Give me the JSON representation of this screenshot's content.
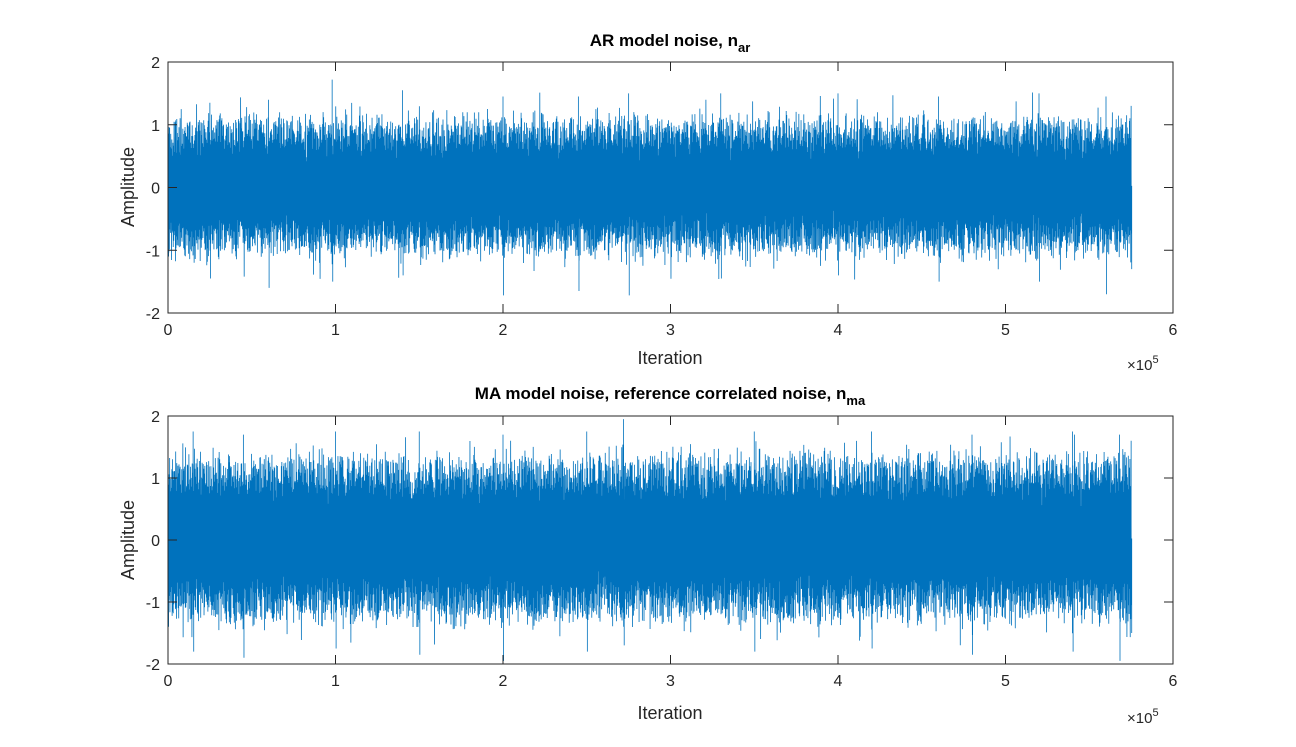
{
  "figure": {
    "background": "#ffffff",
    "line_color": "#0072bd",
    "axis_color": "#262626"
  },
  "chart_data": [
    {
      "type": "line",
      "title_main": "AR model noise, n",
      "title_sub": "ar",
      "xlabel": "Iteration",
      "ylabel": "Amplitude",
      "xlim": [
        0,
        600000
      ],
      "ylim": [
        -2,
        2
      ],
      "x_ticks": [
        0,
        100000,
        200000,
        300000,
        400000,
        500000,
        600000
      ],
      "x_tick_labels": [
        "0",
        "1",
        "2",
        "3",
        "4",
        "5",
        "6"
      ],
      "y_ticks": [
        -2,
        -1,
        0,
        1,
        2
      ],
      "y_tick_labels": [
        "-2",
        "-1",
        "0",
        "1",
        "2"
      ],
      "x_exponent_base": "×10",
      "x_exponent_power": "5",
      "grid": false,
      "series": [
        {
          "color": "#0072bd",
          "x_range": [
            0,
            575000
          ],
          "noise_peaks": [
            {
              "x": 0,
              "max": 1.2,
              "min": -1.1
            },
            {
              "x": 25000,
              "max": 1.35,
              "min": -1.45
            },
            {
              "x": 60000,
              "max": 1.4,
              "min": -1.6
            },
            {
              "x": 98000,
              "max": 1.72,
              "min": -1.5
            },
            {
              "x": 140000,
              "max": 1.55,
              "min": -1.4
            },
            {
              "x": 200000,
              "max": 1.45,
              "min": -1.72
            },
            {
              "x": 245000,
              "max": 1.45,
              "min": -1.65
            },
            {
              "x": 275000,
              "max": 1.5,
              "min": -1.72
            },
            {
              "x": 330000,
              "max": 1.5,
              "min": -1.45
            },
            {
              "x": 400000,
              "max": 1.5,
              "min": -1.4
            },
            {
              "x": 460000,
              "max": 1.45,
              "min": -1.5
            },
            {
              "x": 520000,
              "max": 1.5,
              "min": -1.5
            },
            {
              "x": 560000,
              "max": 1.45,
              "min": -1.7
            },
            {
              "x": 575000,
              "max": 1.3,
              "min": -1.3
            }
          ],
          "typical_envelope": [
            -1.05,
            1.1
          ]
        }
      ]
    },
    {
      "type": "line",
      "title_main": "MA model noise, reference correlated noise, n",
      "title_sub": "ma",
      "xlabel": "Iteration",
      "ylabel": "Amplitude",
      "xlim": [
        0,
        600000
      ],
      "ylim": [
        -2,
        2
      ],
      "x_ticks": [
        0,
        100000,
        200000,
        300000,
        400000,
        500000,
        600000
      ],
      "x_tick_labels": [
        "0",
        "1",
        "2",
        "3",
        "4",
        "5",
        "6"
      ],
      "y_ticks": [
        -2,
        -1,
        0,
        1,
        2
      ],
      "y_tick_labels": [
        "-2",
        "-1",
        "0",
        "1",
        "2"
      ],
      "x_exponent_base": "×10",
      "x_exponent_power": "5",
      "grid": false,
      "series": [
        {
          "color": "#0072bd",
          "x_range": [
            0,
            575000
          ],
          "noise_peaks": [
            {
              "x": 0,
              "max": 1.55,
              "min": -1.4
            },
            {
              "x": 15000,
              "max": 1.75,
              "min": -1.8
            },
            {
              "x": 45000,
              "max": 1.7,
              "min": -1.9
            },
            {
              "x": 100000,
              "max": 1.75,
              "min": -1.75
            },
            {
              "x": 150000,
              "max": 1.75,
              "min": -1.85
            },
            {
              "x": 200000,
              "max": 1.7,
              "min": -1.95
            },
            {
              "x": 250000,
              "max": 1.75,
              "min": -1.8
            },
            {
              "x": 272000,
              "max": 1.95,
              "min": -1.7
            },
            {
              "x": 350000,
              "max": 1.75,
              "min": -1.8
            },
            {
              "x": 420000,
              "max": 1.75,
              "min": -1.75
            },
            {
              "x": 480000,
              "max": 1.7,
              "min": -1.85
            },
            {
              "x": 540000,
              "max": 1.75,
              "min": -1.8
            },
            {
              "x": 568000,
              "max": 1.7,
              "min": -1.95
            },
            {
              "x": 575000,
              "max": 1.6,
              "min": -1.5
            }
          ],
          "typical_envelope": [
            -1.3,
            1.35
          ]
        }
      ]
    }
  ]
}
